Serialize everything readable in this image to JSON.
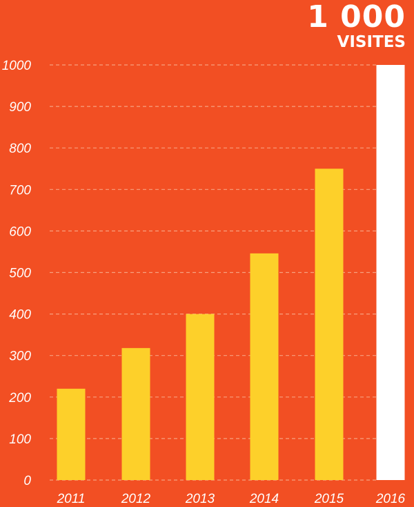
{
  "headline": {
    "value": "1 000",
    "label": "VISITES"
  },
  "colors": {
    "background": "#f24f23",
    "bar": "#fdd02a",
    "highlight_bar": "#ffffff",
    "grid": "#f7a07f",
    "text": "#ffffff"
  },
  "chart_data": {
    "type": "bar",
    "categories": [
      "2011",
      "2012",
      "2013",
      "2014",
      "2015",
      "2016"
    ],
    "values": [
      220,
      318,
      400,
      546,
      750,
      1000
    ],
    "highlight_category": "2016",
    "title": "",
    "xlabel": "",
    "ylabel": "",
    "ylim": [
      0,
      1000
    ],
    "yticks": [
      0,
      100,
      200,
      300,
      400,
      500,
      600,
      700,
      800,
      900,
      1000
    ],
    "grid": true,
    "grid_style": "dashed",
    "legend": "none"
  }
}
